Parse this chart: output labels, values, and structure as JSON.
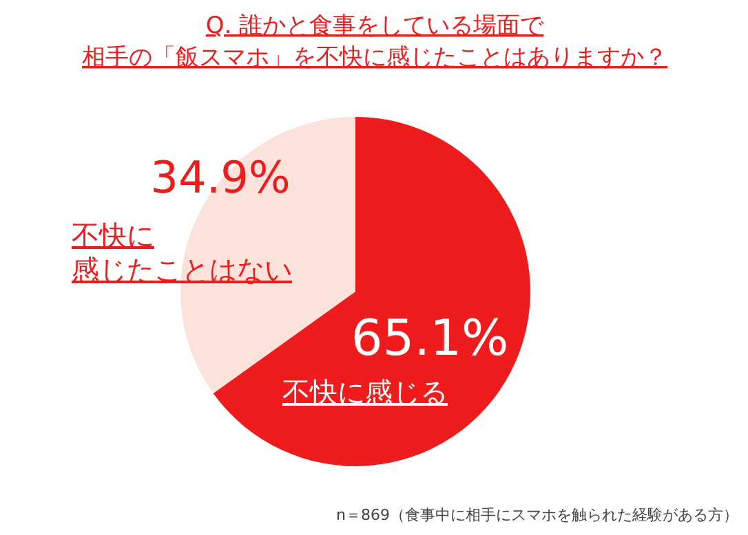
{
  "chart_data": {
    "type": "pie",
    "title": "Q. 誰かと食事をしている場面で",
    "subtitle": "相手の「飯スマホ」を不快に感じたことはありますか？",
    "categories": [
      "不快に感じる",
      "不快に感じたことはない"
    ],
    "values": [
      65.1,
      34.9
    ],
    "colors": [
      "#ee1c1c",
      "#fbe2da"
    ],
    "value_labels": [
      "65.1%",
      "34.9%"
    ],
    "annotations": [
      "n＝869（食事中に相手にスマホを触られた経験がある方）"
    ]
  }
}
